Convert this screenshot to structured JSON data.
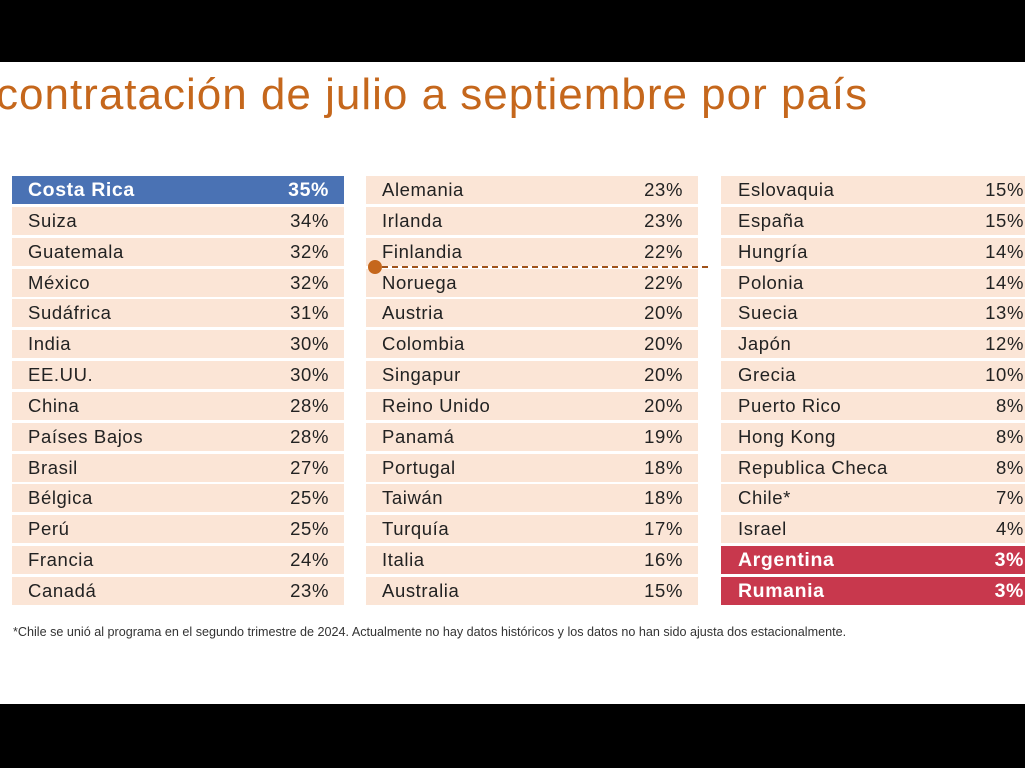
{
  "title": "contratación de julio a septiembre por país",
  "footnote": "*Chile se unió al programa en el segundo trimestre de 2024. Actualmente no hay datos históricos y los datos no han sido ajusta dos estacionalmente.",
  "colors": {
    "title": "#c5671c",
    "row_bg": "#fbe5d6",
    "highlight_top": "#4a72b4",
    "highlight_bottom": "#c8384d",
    "annotation": "#c5671c"
  },
  "chart_data": {
    "type": "table",
    "columns": [
      {
        "rows": [
          {
            "country": "Costa Rica",
            "value": "35%",
            "highlight": "blue"
          },
          {
            "country": "Suiza",
            "value": "34%"
          },
          {
            "country": "Guatemala",
            "value": "32%"
          },
          {
            "country": "México",
            "value": "32%"
          },
          {
            "country": "Sudáfrica",
            "value": "31%"
          },
          {
            "country": "India",
            "value": "30%"
          },
          {
            "country": "EE.UU.",
            "value": "30%"
          },
          {
            "country": "China",
            "value": "28%"
          },
          {
            "country": "Países Bajos",
            "value": "28%"
          },
          {
            "country": "Brasil",
            "value": "27%"
          },
          {
            "country": "Bélgica",
            "value": "25%"
          },
          {
            "country": "Perú",
            "value": "25%"
          },
          {
            "country": "Francia",
            "value": "24%"
          },
          {
            "country": "Canadá",
            "value": "23%"
          }
        ]
      },
      {
        "rows": [
          {
            "country": "Alemania",
            "value": "23%"
          },
          {
            "country": "Irlanda",
            "value": "23%"
          },
          {
            "country": "Finlandia",
            "value": "22%"
          },
          {
            "country": "Noruega",
            "value": "22%"
          },
          {
            "country": "Austria",
            "value": "20%"
          },
          {
            "country": "Colombia",
            "value": "20%"
          },
          {
            "country": "Singapur",
            "value": "20%"
          },
          {
            "country": "Reino Unido",
            "value": "20%"
          },
          {
            "country": "Panamá",
            "value": "19%"
          },
          {
            "country": "Portugal",
            "value": "18%"
          },
          {
            "country": "Taiwán",
            "value": "18%"
          },
          {
            "country": "Turquía",
            "value": "17%"
          },
          {
            "country": "Italia",
            "value": "16%"
          },
          {
            "country": "Australia",
            "value": "15%"
          }
        ]
      },
      {
        "rows": [
          {
            "country": "Eslovaquia",
            "value": "15%"
          },
          {
            "country": "España",
            "value": "15%"
          },
          {
            "country": "Hungría",
            "value": "14%"
          },
          {
            "country": "Polonia",
            "value": "14%"
          },
          {
            "country": "Suecia",
            "value": "13%"
          },
          {
            "country": "Japón",
            "value": "12%"
          },
          {
            "country": "Grecia",
            "value": "10%"
          },
          {
            "country": "Puerto Rico",
            "value": "8%"
          },
          {
            "country": "Hong Kong",
            "value": "8%"
          },
          {
            "country": "Republica Checa",
            "value": "8%"
          },
          {
            "country": "Chile*",
            "value": "7%"
          },
          {
            "country": "Israel",
            "value": "4%"
          },
          {
            "country": "Argentina",
            "value": "3%",
            "highlight": "red"
          },
          {
            "country": "Rumania",
            "value": "3%",
            "highlight": "red"
          }
        ]
      }
    ]
  }
}
